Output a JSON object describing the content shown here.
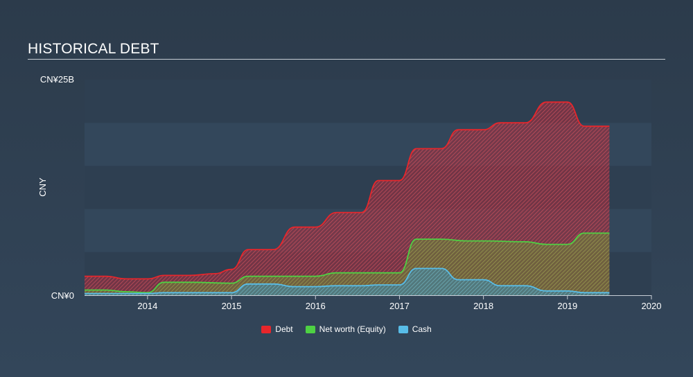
{
  "title": "HISTORICAL DEBT",
  "chart_data": {
    "type": "area",
    "title": "HISTORICAL DEBT",
    "ylabel": "CNY",
    "y_tick_labels": [
      "CN¥25B",
      "CN¥0"
    ],
    "ylim": [
      0,
      25
    ],
    "y_unit": "CNY billions",
    "xlim": [
      2013.25,
      2020.0
    ],
    "x_ticks": [
      2014,
      2015,
      2016,
      2017,
      2018,
      2019,
      2020
    ],
    "x_tick_labels": [
      "2014",
      "2015",
      "2016",
      "2017",
      "2018",
      "2019",
      "2020"
    ],
    "legend_position": "bottom-center",
    "grid": "horizontal bands",
    "series": [
      {
        "name": "Debt",
        "color": "#e8262b",
        "points": [
          [
            2013.25,
            2.2
          ],
          [
            2013.5,
            2.2
          ],
          [
            2013.75,
            1.9
          ],
          [
            2014.0,
            1.9
          ],
          [
            2014.2,
            2.3
          ],
          [
            2014.5,
            2.3
          ],
          [
            2014.8,
            2.5
          ],
          [
            2015.0,
            3.0
          ],
          [
            2015.2,
            5.3
          ],
          [
            2015.5,
            5.3
          ],
          [
            2015.75,
            7.9
          ],
          [
            2016.0,
            7.9
          ],
          [
            2016.25,
            9.6
          ],
          [
            2016.55,
            9.6
          ],
          [
            2016.75,
            13.3
          ],
          [
            2017.0,
            13.3
          ],
          [
            2017.2,
            17.0
          ],
          [
            2017.5,
            17.0
          ],
          [
            2017.7,
            19.2
          ],
          [
            2018.0,
            19.2
          ],
          [
            2018.2,
            20.0
          ],
          [
            2018.5,
            20.0
          ],
          [
            2018.75,
            22.4
          ],
          [
            2019.0,
            22.4
          ],
          [
            2019.2,
            19.6
          ],
          [
            2019.5,
            19.6
          ]
        ]
      },
      {
        "name": "Net worth (Equity)",
        "color": "#4ed143",
        "points": [
          [
            2013.25,
            0.6
          ],
          [
            2013.5,
            0.6
          ],
          [
            2013.75,
            0.4
          ],
          [
            2014.0,
            0.3
          ],
          [
            2014.2,
            1.5
          ],
          [
            2014.5,
            1.5
          ],
          [
            2015.0,
            1.4
          ],
          [
            2015.2,
            2.2
          ],
          [
            2015.5,
            2.2
          ],
          [
            2016.0,
            2.2
          ],
          [
            2016.25,
            2.6
          ],
          [
            2016.55,
            2.6
          ],
          [
            2017.0,
            2.6
          ],
          [
            2017.2,
            6.5
          ],
          [
            2017.5,
            6.5
          ],
          [
            2017.8,
            6.3
          ],
          [
            2018.0,
            6.3
          ],
          [
            2018.5,
            6.2
          ],
          [
            2018.75,
            5.9
          ],
          [
            2019.0,
            5.9
          ],
          [
            2019.2,
            7.2
          ],
          [
            2019.5,
            7.2
          ]
        ]
      },
      {
        "name": "Cash",
        "color": "#58bde8",
        "points": [
          [
            2013.25,
            0.2
          ],
          [
            2013.5,
            0.2
          ],
          [
            2014.0,
            0.2
          ],
          [
            2014.2,
            0.3
          ],
          [
            2014.5,
            0.3
          ],
          [
            2015.0,
            0.3
          ],
          [
            2015.2,
            1.3
          ],
          [
            2015.5,
            1.3
          ],
          [
            2015.75,
            1.0
          ],
          [
            2016.0,
            1.0
          ],
          [
            2016.25,
            1.1
          ],
          [
            2016.55,
            1.1
          ],
          [
            2016.75,
            1.2
          ],
          [
            2017.0,
            1.2
          ],
          [
            2017.2,
            3.1
          ],
          [
            2017.5,
            3.1
          ],
          [
            2017.7,
            1.8
          ],
          [
            2018.0,
            1.8
          ],
          [
            2018.2,
            1.1
          ],
          [
            2018.5,
            1.1
          ],
          [
            2018.75,
            0.5
          ],
          [
            2019.0,
            0.5
          ],
          [
            2019.2,
            0.3
          ],
          [
            2019.5,
            0.3
          ]
        ]
      }
    ]
  }
}
